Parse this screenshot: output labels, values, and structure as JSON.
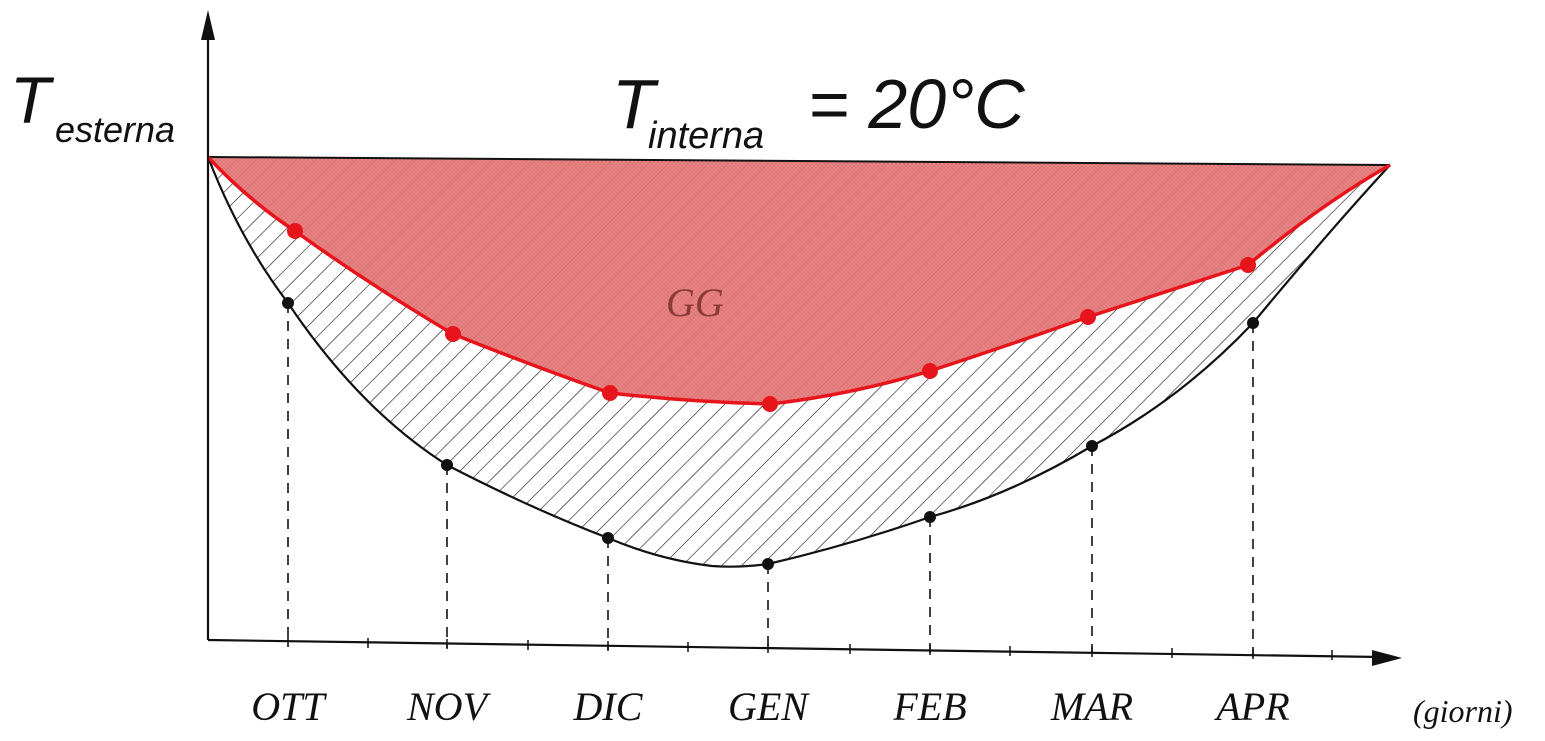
{
  "labels": {
    "y_axis_T": "T",
    "y_axis_sub": "esterna",
    "interna_T": "T",
    "interna_sub": "interna",
    "interna_value": "= 20°C",
    "area_label": "GG",
    "x_unit": "(giorni)"
  },
  "months": [
    "OTT",
    "NOV",
    "DIC",
    "GEN",
    "FEB",
    "MAR",
    "APR"
  ],
  "colors": {
    "red": "#e8141b",
    "area_fill": "#e98787",
    "black": "#111111"
  }
}
